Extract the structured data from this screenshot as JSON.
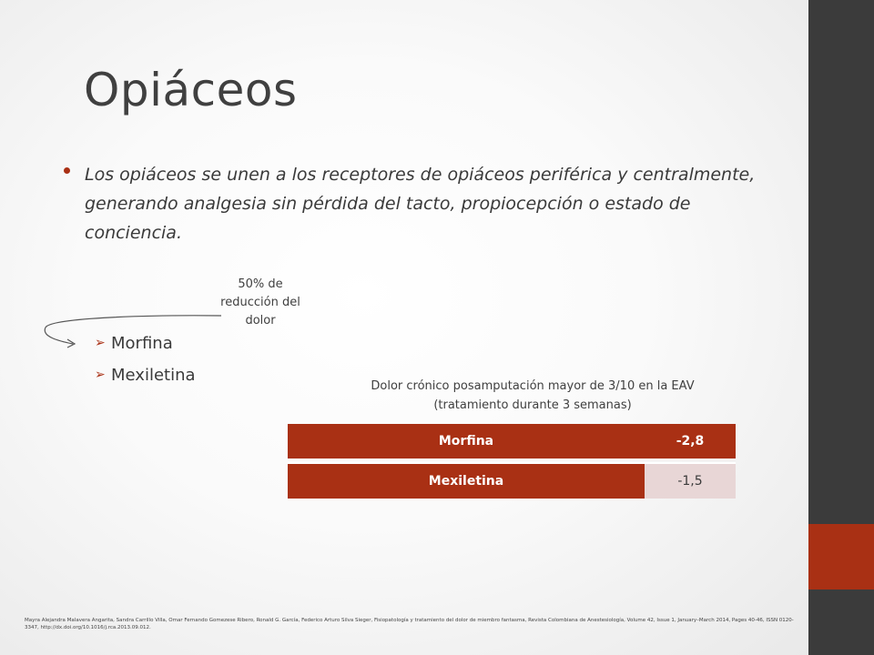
{
  "slide": {
    "title": "Opiáceos",
    "bullet": "Los opiáceos se unen a los receptores de opiáceos periférica y centralmente, generando analgesia sin pérdida del tacto, propiocepción o estado de conciencia.",
    "note": "50% de reducción del dolor",
    "sub_items": [
      "Morfina",
      "Mexiletina"
    ],
    "table_caption": "Dolor crónico posamputación mayor de 3/10 en la EAV (tratamiento durante 3 semanas)",
    "table": {
      "rows": [
        {
          "drug": "Morfina",
          "value": "-2,8"
        },
        {
          "drug": "Mexiletina",
          "value": "-1,5"
        }
      ]
    },
    "footnote": "Mayra Alejandra Malavera Angarita, Sandra Carrillo Villa, Omar Fernando Gomezese Ribero, Ronald G. García, Federico Arturo Silva Sieger, Fisiopatología y tratamiento del dolor de miembro fantasma, Revista Colombiana de Anestesiología, Volume 42, Issue 1, January–March 2014, Pages 40-46, ISSN 0120-3347, http://dx.doi.org/10.1016/j.rca.2013.09.012."
  },
  "colors": {
    "accent": "#a93014",
    "sidebar": "#3b3b3b",
    "table_light": "#e8d6d6"
  },
  "icons": {
    "bullet": "bullet-dot-icon",
    "sub_item": "arrow-right-icon",
    "note_connector": "curved-arrow-icon"
  }
}
